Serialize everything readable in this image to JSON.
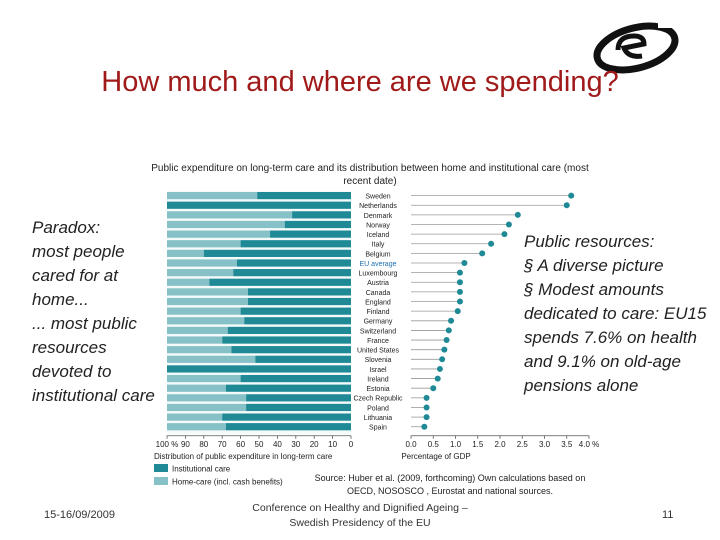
{
  "slide": {
    "title": "How much and where are we spending?",
    "left_text": "Paradox:\nmost people cared for at home...\n... most  public resources devoted to institutional care",
    "right_text": [
      " Public resources:",
      "§ A diverse picture",
      "§ Modest amounts dedicated to care: EU15 spends 7.6% on health and 9.1% on old-age pensions alone"
    ],
    "source": "Source: Huber et al. (2009, forthcoming) Own calculations based on OECD, NOSOSCO , Eurostat and national sources.",
    "footer_date": "15-16/09/2009",
    "footer_center": "Conference on Healthy and Dignified Ageing – Swedish Presidency of the EU",
    "page_number": "11"
  },
  "colors": {
    "institutional": "#1f8a96",
    "homecare": "#86c1c7",
    "dot": "#1f8a96",
    "title": "#a01a1a"
  },
  "chart_data": {
    "type": "bar",
    "title": "Public expenditure on long-term care and its distribution between home and institutional care (most recent date)",
    "categories": [
      "Sweden",
      "Netherlands",
      "Denmark",
      "Norway",
      "Iceland",
      "Italy",
      "Belgium",
      "EU average",
      "Luxembourg",
      "Austria",
      "Canada",
      "England",
      "Finland",
      "Germany",
      "Switzerland",
      "France",
      "United States",
      "Slovenia",
      "Israel",
      "Ireland",
      "Estonia",
      "Czech Republic",
      "Poland",
      "Lithuania",
      "Spain"
    ],
    "institutional_share_pct": [
      51,
      100,
      32,
      36,
      44,
      60,
      80,
      62,
      64,
      77,
      56,
      56,
      60,
      58,
      67,
      70,
      65,
      52,
      100,
      60,
      68,
      57,
      57,
      70,
      68
    ],
    "expenditure_pct_gdp": [
      3.6,
      3.5,
      2.4,
      2.2,
      2.1,
      1.8,
      1.6,
      1.2,
      1.1,
      1.1,
      1.1,
      1.1,
      1.05,
      0.9,
      0.85,
      0.8,
      0.75,
      0.7,
      0.65,
      0.6,
      0.5,
      0.35,
      0.35,
      0.35,
      0.3
    ],
    "left_axis": {
      "label": "Distribution of public expenditure in long-term care",
      "ticks": [
        "100 %",
        "90",
        "80",
        "70",
        "60",
        "50",
        "40",
        "30",
        "20",
        "10",
        "0"
      ],
      "range": [
        100,
        0
      ]
    },
    "right_axis": {
      "label": "Percentage of GDP",
      "ticks": [
        "0.0",
        "0.5",
        "1.0",
        "1.5",
        "2.0",
        "2.5",
        "3.0",
        "3.5",
        "4.0 %"
      ],
      "range": [
        0,
        4
      ]
    },
    "legend": [
      {
        "name": "Institutional care",
        "color": "#1f8a96"
      },
      {
        "name": "Home-care (incl. cash benefits)",
        "color": "#86c1c7"
      }
    ]
  }
}
